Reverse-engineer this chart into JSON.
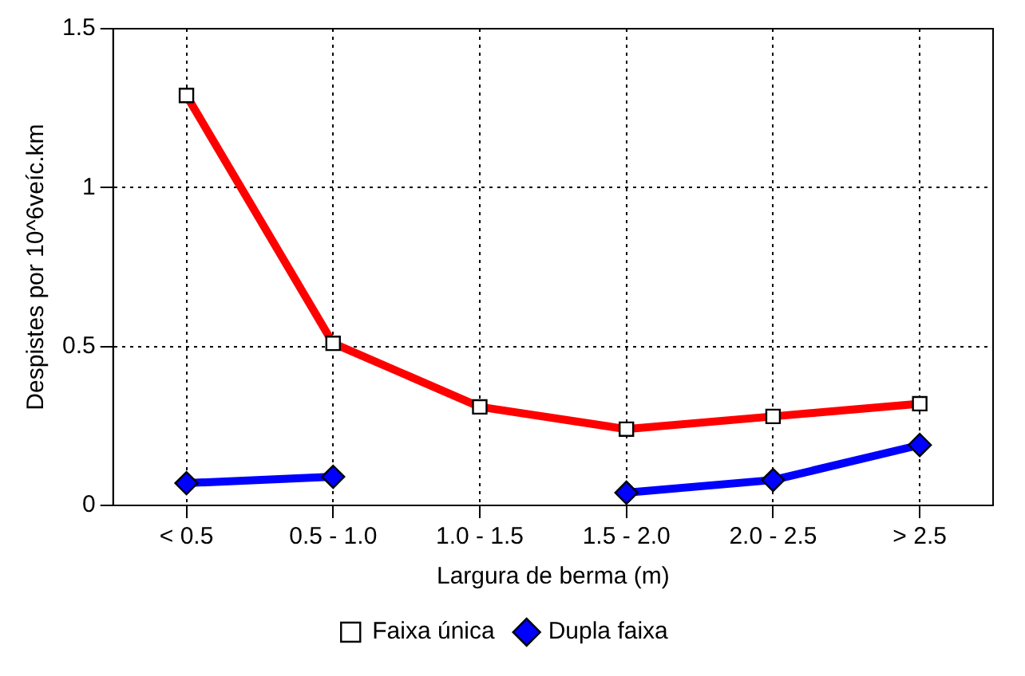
{
  "chart_data": {
    "type": "line",
    "xlabel": "Largura de berma (m)",
    "ylabel": "Despistes por 10^6veíc.km",
    "categories": [
      "< 0.5",
      "0.5 - 1.0",
      "1.0 - 1.5",
      "1.5 - 2.0",
      "2.0 - 2.5",
      "> 2.5"
    ],
    "series": [
      {
        "name": "Faixa única",
        "color": "#ff0000",
        "marker": "square",
        "values": [
          1.29,
          0.51,
          0.31,
          0.24,
          0.28,
          0.32
        ]
      },
      {
        "name": "Dupla faixa",
        "color": "#0000ff",
        "marker": "diamond",
        "values": [
          0.07,
          0.09,
          null,
          0.04,
          0.08,
          0.19
        ]
      }
    ],
    "ylim": [
      0,
      1.5
    ],
    "yticks": [
      0,
      0.5,
      1,
      1.5
    ],
    "grid": true,
    "legend": "bottom"
  }
}
